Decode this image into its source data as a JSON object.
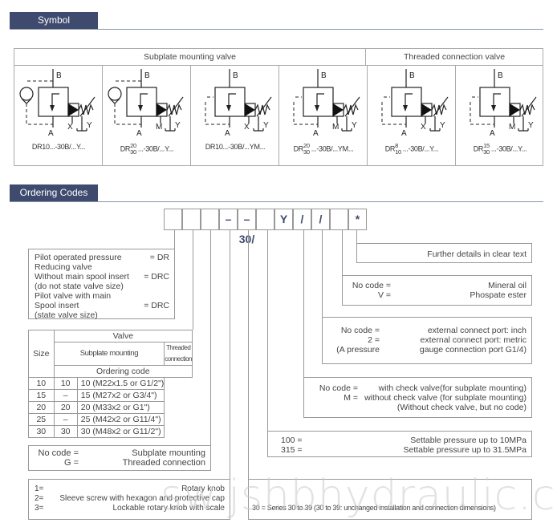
{
  "symbol_section": {
    "title": "Symbol",
    "header_subplate": "Subplate mounting valve",
    "header_threaded": "Threaded connection valve",
    "symbols": [
      {
        "check_valve": true,
        "port_b": "B",
        "port_a": "A",
        "port_x": "X",
        "port_y": "Y",
        "caption": {
          "prefix": "DR10...",
          "sup": "",
          "sub": "",
          "suffix": "-30B/...Y..."
        }
      },
      {
        "check_valve": true,
        "port_b": "B",
        "port_a": "A",
        "port_x": "M",
        "port_y": "Y",
        "caption": {
          "prefix": "DR",
          "sup": "20",
          "sub": "30",
          "suffix": "...-30B/...Y..."
        }
      },
      {
        "check_valve": false,
        "port_b": "B",
        "port_a": "A",
        "port_x": "X",
        "port_y": "Y",
        "caption": {
          "prefix": "DR10...",
          "sup": "",
          "sub": "",
          "suffix": "-30B/...YM..."
        }
      },
      {
        "check_valve": false,
        "port_b": "B",
        "port_a": "A",
        "port_x": "M",
        "port_y": "Y",
        "caption": {
          "prefix": "DR",
          "sup": "20",
          "sub": "30",
          "suffix": "...-30B/...YM..."
        }
      },
      {
        "check_valve": false,
        "port_b": "B",
        "port_a": "A",
        "port_x": "X",
        "port_y": "Y",
        "caption": {
          "prefix": "DR",
          "sup": "8",
          "sub": "10",
          "suffix": "...-30B/...Y..."
        }
      },
      {
        "check_valve": false,
        "port_b": "B",
        "port_a": "A",
        "port_x": "M",
        "port_y": "Y",
        "caption": {
          "prefix": "DR",
          "sup": "15",
          "sub": "30",
          "suffix": "...-30B/...Y..."
        }
      }
    ]
  },
  "ordering_section": {
    "title": "Ordering Codes",
    "code_cells": [
      "",
      "",
      "",
      "–",
      "–30/",
      "",
      "Y",
      "/",
      "/",
      "",
      "*"
    ],
    "further_details": "Further details in clear text",
    "fluid": [
      {
        "code": "No code =",
        "desc": "Mineral oil"
      },
      {
        "code": "V =",
        "desc": "Phospate ester"
      }
    ],
    "port": [
      {
        "code": "No code =",
        "desc": "external connect port: inch"
      },
      {
        "code": "2 =",
        "desc": "external connect port: metric"
      },
      {
        "code": "(A pressure",
        "desc": "gauge connection port G1/4)"
      }
    ],
    "check": [
      {
        "code": "No code =",
        "desc": "with check valve(for subplate mounting)"
      },
      {
        "code": "M =",
        "desc": "without check valve (for subplate mounting)"
      },
      {
        "code": "",
        "desc": "(Without check valve, but no code)"
      }
    ],
    "pressure": [
      {
        "code": "100 =",
        "desc": "Settable pressure up to 10MPa"
      },
      {
        "code": "315 =",
        "desc": "Settable pressure up to 31.5MPa"
      }
    ],
    "series": "30 = Series 30 to 39 (30 to 39: unchanged installation and connection dimensions)",
    "pilot": [
      {
        "text": "Pilot operated pressure",
        "code": "= DR"
      },
      {
        "text": "Reducing valve",
        "code": ""
      },
      {
        "text": "Without main spool insert",
        "code": "= DRC"
      },
      {
        "text": "(do not state valve size)",
        "code": ""
      },
      {
        "text": "Pilot valve with main",
        "code": ""
      },
      {
        "text": "Spool insert",
        "code": "= DRC"
      },
      {
        "text": "(state valve size)",
        "code": ""
      }
    ],
    "size_table": {
      "size_header": "Size",
      "valve_header": "Valve",
      "subplate_header": "Subplate mounting",
      "threaded_header": "Threaded connection",
      "ordering_header": "Ordering code",
      "rows": [
        {
          "size": "10",
          "subplate": "10",
          "threaded": "10  (M22x1.5 or G1/2\")"
        },
        {
          "size": "15",
          "subplate": "–",
          "threaded": "15  (M27x2 or G3/4\")"
        },
        {
          "size": "20",
          "subplate": "20",
          "threaded": "20  (M33x2 or G1\")"
        },
        {
          "size": "25",
          "subplate": "–",
          "threaded": "25  (M42x2 or G11/4\")"
        },
        {
          "size": "30",
          "subplate": "30",
          "threaded": "30 (M48x2 or G11/2\")"
        }
      ]
    },
    "mounting": [
      {
        "code": "No code  =",
        "desc": "Subplate mounting"
      },
      {
        "code": "G  =",
        "desc": "Threaded connection"
      }
    ],
    "adjustment": [
      {
        "code": "1=",
        "desc": "Rotary knob"
      },
      {
        "code": "2=",
        "desc": "Sleeve screw with hexagon and protective cap"
      },
      {
        "code": "3=",
        "desc": "Lockable rotary knob with scale"
      }
    ]
  },
  "watermark": "sw.jshbhydraulic.com",
  "colors": {
    "header_bg": "#3f4b6e",
    "code_text": "#3f4b6e",
    "border": "#999999"
  }
}
